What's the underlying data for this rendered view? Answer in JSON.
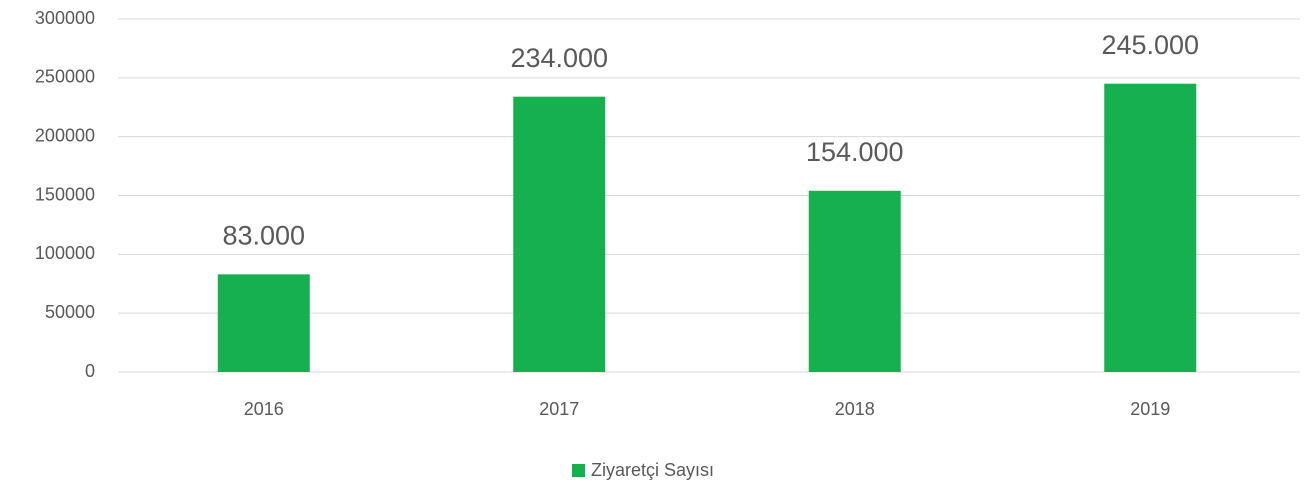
{
  "chart_data": {
    "type": "bar",
    "categories": [
      "2016",
      "2017",
      "2018",
      "2019"
    ],
    "series": [
      {
        "name": "Ziyaretçi Sayısı",
        "color": "#17b04e",
        "values": [
          83000,
          234000,
          154000,
          245000
        ],
        "value_labels": [
          "83.000",
          "234.000",
          "154.000",
          "245.000"
        ]
      }
    ],
    "ylim": [
      0,
      300000
    ],
    "yticks": [
      0,
      50000,
      100000,
      150000,
      200000,
      250000,
      300000
    ],
    "grid": true,
    "legend": "bottom"
  }
}
